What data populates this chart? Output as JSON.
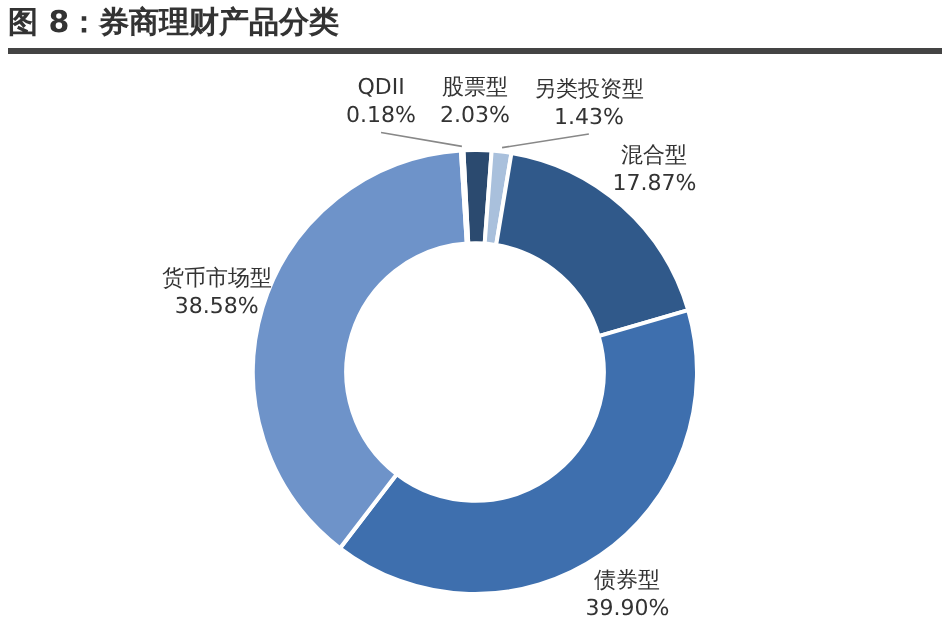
{
  "chart_data": {
    "type": "donut",
    "title": "图 8：券商理财产品分类",
    "categories": [
      "股票型",
      "另类投资型",
      "混合型",
      "债券型",
      "货币市场型",
      "QDII"
    ],
    "values": [
      2.03,
      1.43,
      17.87,
      39.9,
      38.58,
      0.18
    ],
    "value_labels": [
      "2.03%",
      "1.43%",
      "17.87%",
      "39.90%",
      "38.58%",
      "0.18%"
    ],
    "colors": [
      "#2b4a6f",
      "#a9c0dc",
      "#30598a",
      "#3e6fae",
      "#6e93c9",
      "#c6d6ea"
    ],
    "legend": false
  }
}
